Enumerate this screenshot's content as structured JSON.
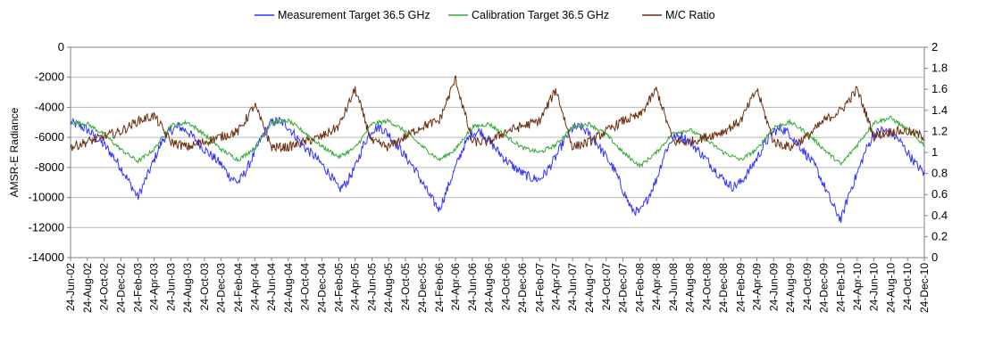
{
  "chart_data": {
    "type": "line",
    "title": "",
    "xlabel": "",
    "ylabel": "AMSR-E Radiance",
    "y2label": "",
    "ylim": [
      -14000,
      0
    ],
    "yticks": [
      0,
      -2000,
      -4000,
      -6000,
      -8000,
      -10000,
      -12000,
      -14000
    ],
    "y2lim": [
      0,
      2
    ],
    "y2ticks": [
      "0",
      "0.2",
      "0.4",
      "0.6",
      "0.8",
      "1",
      "1.2",
      "1.4",
      "1.6",
      "1.8",
      "2"
    ],
    "grid": true,
    "legend_position": "top-center",
    "x_range": [
      "2002-06-24",
      "2010-12-24"
    ],
    "x_tick_labels": [
      "24-Jun-02",
      "24-Aug-02",
      "24-Oct-02",
      "24-Dec-02",
      "24-Feb-03",
      "24-Apr-03",
      "24-Jun-03",
      "24-Aug-03",
      "24-Oct-03",
      "24-Dec-03",
      "24-Feb-04",
      "24-Apr-04",
      "24-Jun-04",
      "24-Aug-04",
      "24-Oct-04",
      "24-Dec-04",
      "24-Feb-05",
      "24-Apr-05",
      "24-Jun-05",
      "24-Aug-05",
      "24-Oct-05",
      "24-Dec-05",
      "24-Feb-06",
      "24-Apr-06",
      "24-Jun-06",
      "24-Aug-06",
      "24-Oct-06",
      "24-Dec-06",
      "24-Feb-07",
      "24-Apr-07",
      "24-Jun-07",
      "24-Aug-07",
      "24-Oct-07",
      "24-Dec-07",
      "24-Feb-08",
      "24-Apr-08",
      "24-Jun-08",
      "24-Aug-08",
      "24-Oct-08",
      "24-Dec-08",
      "24-Feb-09",
      "24-Apr-09",
      "24-Jun-09",
      "24-Aug-09",
      "24-Oct-09",
      "24-Dec-09",
      "24-Feb-10",
      "24-Apr-10",
      "24-Jun-10",
      "24-Aug-10",
      "24-Oct-10",
      "24-Dec-10"
    ],
    "series": [
      {
        "name": "Measurement Target 36.5 GHz",
        "axis": "left",
        "color": "#3333ff",
        "points": [
          [
            "2002-06-24",
            -5000
          ],
          [
            "2002-07-24",
            -5200
          ],
          [
            "2002-08-24",
            -5500
          ],
          [
            "2002-09-24",
            -6000
          ],
          [
            "2002-10-24",
            -6500
          ],
          [
            "2002-11-24",
            -7200
          ],
          [
            "2002-12-24",
            -8000
          ],
          [
            "2003-01-24",
            -9000
          ],
          [
            "2003-02-24",
            -10000
          ],
          [
            "2003-03-24",
            -8800
          ],
          [
            "2003-04-24",
            -7500
          ],
          [
            "2003-05-24",
            -6200
          ],
          [
            "2003-06-24",
            -5500
          ],
          [
            "2003-07-24",
            -5300
          ],
          [
            "2003-08-24",
            -5600
          ],
          [
            "2003-09-24",
            -6200
          ],
          [
            "2003-10-24",
            -6800
          ],
          [
            "2003-11-24",
            -7300
          ],
          [
            "2003-12-24",
            -7800
          ],
          [
            "2004-01-24",
            -8600
          ],
          [
            "2004-02-24",
            -9000
          ],
          [
            "2004-03-24",
            -8200
          ],
          [
            "2004-04-24",
            -7000
          ],
          [
            "2004-05-24",
            -5800
          ],
          [
            "2004-06-24",
            -5000
          ],
          [
            "2004-07-24",
            -4900
          ],
          [
            "2004-08-24",
            -5300
          ],
          [
            "2004-09-24",
            -6000
          ],
          [
            "2004-10-24",
            -6700
          ],
          [
            "2004-11-24",
            -7200
          ],
          [
            "2004-12-24",
            -7800
          ],
          [
            "2005-01-24",
            -8500
          ],
          [
            "2005-02-24",
            -9500
          ],
          [
            "2005-03-24",
            -9000
          ],
          [
            "2005-04-24",
            -8000
          ],
          [
            "2005-05-24",
            -6500
          ],
          [
            "2005-06-24",
            -5500
          ],
          [
            "2005-07-24",
            -5300
          ],
          [
            "2005-08-24",
            -5800
          ],
          [
            "2005-09-24",
            -6500
          ],
          [
            "2005-10-24",
            -7300
          ],
          [
            "2005-11-24",
            -8000
          ],
          [
            "2005-12-24",
            -9000
          ],
          [
            "2006-01-24",
            -10000
          ],
          [
            "2006-02-24",
            -10800
          ],
          [
            "2006-03-24",
            -9500
          ],
          [
            "2006-04-24",
            -8000
          ],
          [
            "2006-05-24",
            -6600
          ],
          [
            "2006-06-24",
            -5700
          ],
          [
            "2006-07-24",
            -5600
          ],
          [
            "2006-08-24",
            -6200
          ],
          [
            "2006-09-24",
            -6900
          ],
          [
            "2006-10-24",
            -7500
          ],
          [
            "2006-11-24",
            -8000
          ],
          [
            "2006-12-24",
            -8400
          ],
          [
            "2007-01-24",
            -8700
          ],
          [
            "2007-02-24",
            -8800
          ],
          [
            "2007-03-24",
            -8200
          ],
          [
            "2007-04-24",
            -7300
          ],
          [
            "2007-05-24",
            -6200
          ],
          [
            "2007-06-24",
            -5400
          ],
          [
            "2007-07-24",
            -5300
          ],
          [
            "2007-08-24",
            -5800
          ],
          [
            "2007-09-24",
            -6500
          ],
          [
            "2007-10-24",
            -7300
          ],
          [
            "2007-11-24",
            -8200
          ],
          [
            "2007-12-24",
            -9500
          ],
          [
            "2008-01-24",
            -10800
          ],
          [
            "2008-02-24",
            -11000
          ],
          [
            "2008-03-24",
            -10000
          ],
          [
            "2008-04-24",
            -8800
          ],
          [
            "2008-05-24",
            -7000
          ],
          [
            "2008-06-24",
            -6000
          ],
          [
            "2008-07-24",
            -5900
          ],
          [
            "2008-08-24",
            -6300
          ],
          [
            "2008-09-24",
            -6900
          ],
          [
            "2008-10-24",
            -7500
          ],
          [
            "2008-11-24",
            -8200
          ],
          [
            "2008-12-24",
            -8800
          ],
          [
            "2009-01-24",
            -9300
          ],
          [
            "2009-02-24",
            -9000
          ],
          [
            "2009-03-24",
            -8300
          ],
          [
            "2009-04-24",
            -7400
          ],
          [
            "2009-05-24",
            -6400
          ],
          [
            "2009-06-24",
            -5600
          ],
          [
            "2009-07-24",
            -5400
          ],
          [
            "2009-08-24",
            -5800
          ],
          [
            "2009-09-24",
            -6500
          ],
          [
            "2009-10-24",
            -7200
          ],
          [
            "2009-11-24",
            -8000
          ],
          [
            "2009-12-24",
            -9200
          ],
          [
            "2010-01-24",
            -10500
          ],
          [
            "2010-02-24",
            -11500
          ],
          [
            "2010-03-24",
            -9800
          ],
          [
            "2010-04-24",
            -8400
          ],
          [
            "2010-05-24",
            -6900
          ],
          [
            "2010-06-24",
            -5800
          ],
          [
            "2010-07-24",
            -5500
          ],
          [
            "2010-08-24",
            -5700
          ],
          [
            "2010-09-24",
            -6200
          ],
          [
            "2010-10-24",
            -7000
          ],
          [
            "2010-11-24",
            -7800
          ],
          [
            "2010-12-24",
            -8400
          ]
        ]
      },
      {
        "name": "Calibration Target 36.5 GHz",
        "axis": "left",
        "color": "#33aa33",
        "points": [
          [
            "2002-06-24",
            -5000
          ],
          [
            "2002-08-24",
            -5100
          ],
          [
            "2002-10-24",
            -5800
          ],
          [
            "2002-12-24",
            -6800
          ],
          [
            "2003-02-24",
            -7600
          ],
          [
            "2003-04-24",
            -6800
          ],
          [
            "2003-06-24",
            -5200
          ],
          [
            "2003-08-24",
            -5000
          ],
          [
            "2003-10-24",
            -5800
          ],
          [
            "2003-12-24",
            -6800
          ],
          [
            "2004-02-24",
            -7500
          ],
          [
            "2004-04-24",
            -6700
          ],
          [
            "2004-06-24",
            -5000
          ],
          [
            "2004-08-24",
            -4900
          ],
          [
            "2004-10-24",
            -5700
          ],
          [
            "2004-12-24",
            -6600
          ],
          [
            "2005-02-24",
            -7300
          ],
          [
            "2005-04-24",
            -6700
          ],
          [
            "2005-06-24",
            -5100
          ],
          [
            "2005-08-24",
            -4900
          ],
          [
            "2005-10-24",
            -5600
          ],
          [
            "2005-12-24",
            -6600
          ],
          [
            "2006-02-24",
            -7500
          ],
          [
            "2006-04-24",
            -6800
          ],
          [
            "2006-06-24",
            -5300
          ],
          [
            "2006-08-24",
            -5100
          ],
          [
            "2006-10-24",
            -5900
          ],
          [
            "2006-12-24",
            -6700
          ],
          [
            "2007-02-24",
            -7000
          ],
          [
            "2007-04-24",
            -6500
          ],
          [
            "2007-06-24",
            -5300
          ],
          [
            "2007-08-24",
            -5100
          ],
          [
            "2007-10-24",
            -5800
          ],
          [
            "2007-12-24",
            -7000
          ],
          [
            "2008-02-24",
            -7900
          ],
          [
            "2008-04-24",
            -7000
          ],
          [
            "2008-06-24",
            -5700
          ],
          [
            "2008-08-24",
            -5500
          ],
          [
            "2008-10-24",
            -6200
          ],
          [
            "2008-12-24",
            -7000
          ],
          [
            "2009-02-24",
            -7500
          ],
          [
            "2009-04-24",
            -6800
          ],
          [
            "2009-06-24",
            -5300
          ],
          [
            "2009-08-24",
            -5000
          ],
          [
            "2009-10-24",
            -5700
          ],
          [
            "2009-12-24",
            -6800
          ],
          [
            "2010-02-24",
            -7800
          ],
          [
            "2010-04-24",
            -6500
          ],
          [
            "2010-06-24",
            -5000
          ],
          [
            "2010-08-24",
            -4700
          ],
          [
            "2010-10-24",
            -5500
          ],
          [
            "2010-12-24",
            -6500
          ]
        ]
      },
      {
        "name": "M/C Ratio",
        "axis": "right",
        "color": "#6b2f10",
        "points": [
          [
            "2002-06-24",
            1.05
          ],
          [
            "2002-08-24",
            1.1
          ],
          [
            "2002-10-24",
            1.15
          ],
          [
            "2002-12-24",
            1.2
          ],
          [
            "2003-02-24",
            1.3
          ],
          [
            "2003-04-24",
            1.35
          ],
          [
            "2003-06-24",
            1.1
          ],
          [
            "2003-08-24",
            1.05
          ],
          [
            "2003-10-24",
            1.1
          ],
          [
            "2003-12-24",
            1.15
          ],
          [
            "2004-02-24",
            1.2
          ],
          [
            "2004-04-24",
            1.45
          ],
          [
            "2004-06-24",
            1.05
          ],
          [
            "2004-08-24",
            1.05
          ],
          [
            "2004-10-24",
            1.1
          ],
          [
            "2004-12-24",
            1.15
          ],
          [
            "2005-02-24",
            1.25
          ],
          [
            "2005-04-24",
            1.6
          ],
          [
            "2005-06-24",
            1.1
          ],
          [
            "2005-08-24",
            1.05
          ],
          [
            "2005-10-24",
            1.15
          ],
          [
            "2005-12-24",
            1.25
          ],
          [
            "2006-02-24",
            1.3
          ],
          [
            "2006-04-24",
            1.7
          ],
          [
            "2006-06-24",
            1.1
          ],
          [
            "2006-08-24",
            1.1
          ],
          [
            "2006-10-24",
            1.2
          ],
          [
            "2006-12-24",
            1.25
          ],
          [
            "2007-02-24",
            1.3
          ],
          [
            "2007-04-24",
            1.6
          ],
          [
            "2007-06-24",
            1.05
          ],
          [
            "2007-08-24",
            1.1
          ],
          [
            "2007-10-24",
            1.2
          ],
          [
            "2007-12-24",
            1.3
          ],
          [
            "2008-02-24",
            1.35
          ],
          [
            "2008-04-24",
            1.6
          ],
          [
            "2008-06-24",
            1.1
          ],
          [
            "2008-08-24",
            1.1
          ],
          [
            "2008-10-24",
            1.15
          ],
          [
            "2008-12-24",
            1.2
          ],
          [
            "2009-02-24",
            1.3
          ],
          [
            "2009-04-24",
            1.6
          ],
          [
            "2009-06-24",
            1.1
          ],
          [
            "2009-08-24",
            1.05
          ],
          [
            "2009-10-24",
            1.15
          ],
          [
            "2009-12-24",
            1.3
          ],
          [
            "2010-02-24",
            1.4
          ],
          [
            "2010-04-24",
            1.6
          ],
          [
            "2010-06-24",
            1.15
          ],
          [
            "2010-08-24",
            1.2
          ],
          [
            "2010-10-24",
            1.2
          ],
          [
            "2010-12-24",
            1.15
          ]
        ]
      }
    ]
  }
}
